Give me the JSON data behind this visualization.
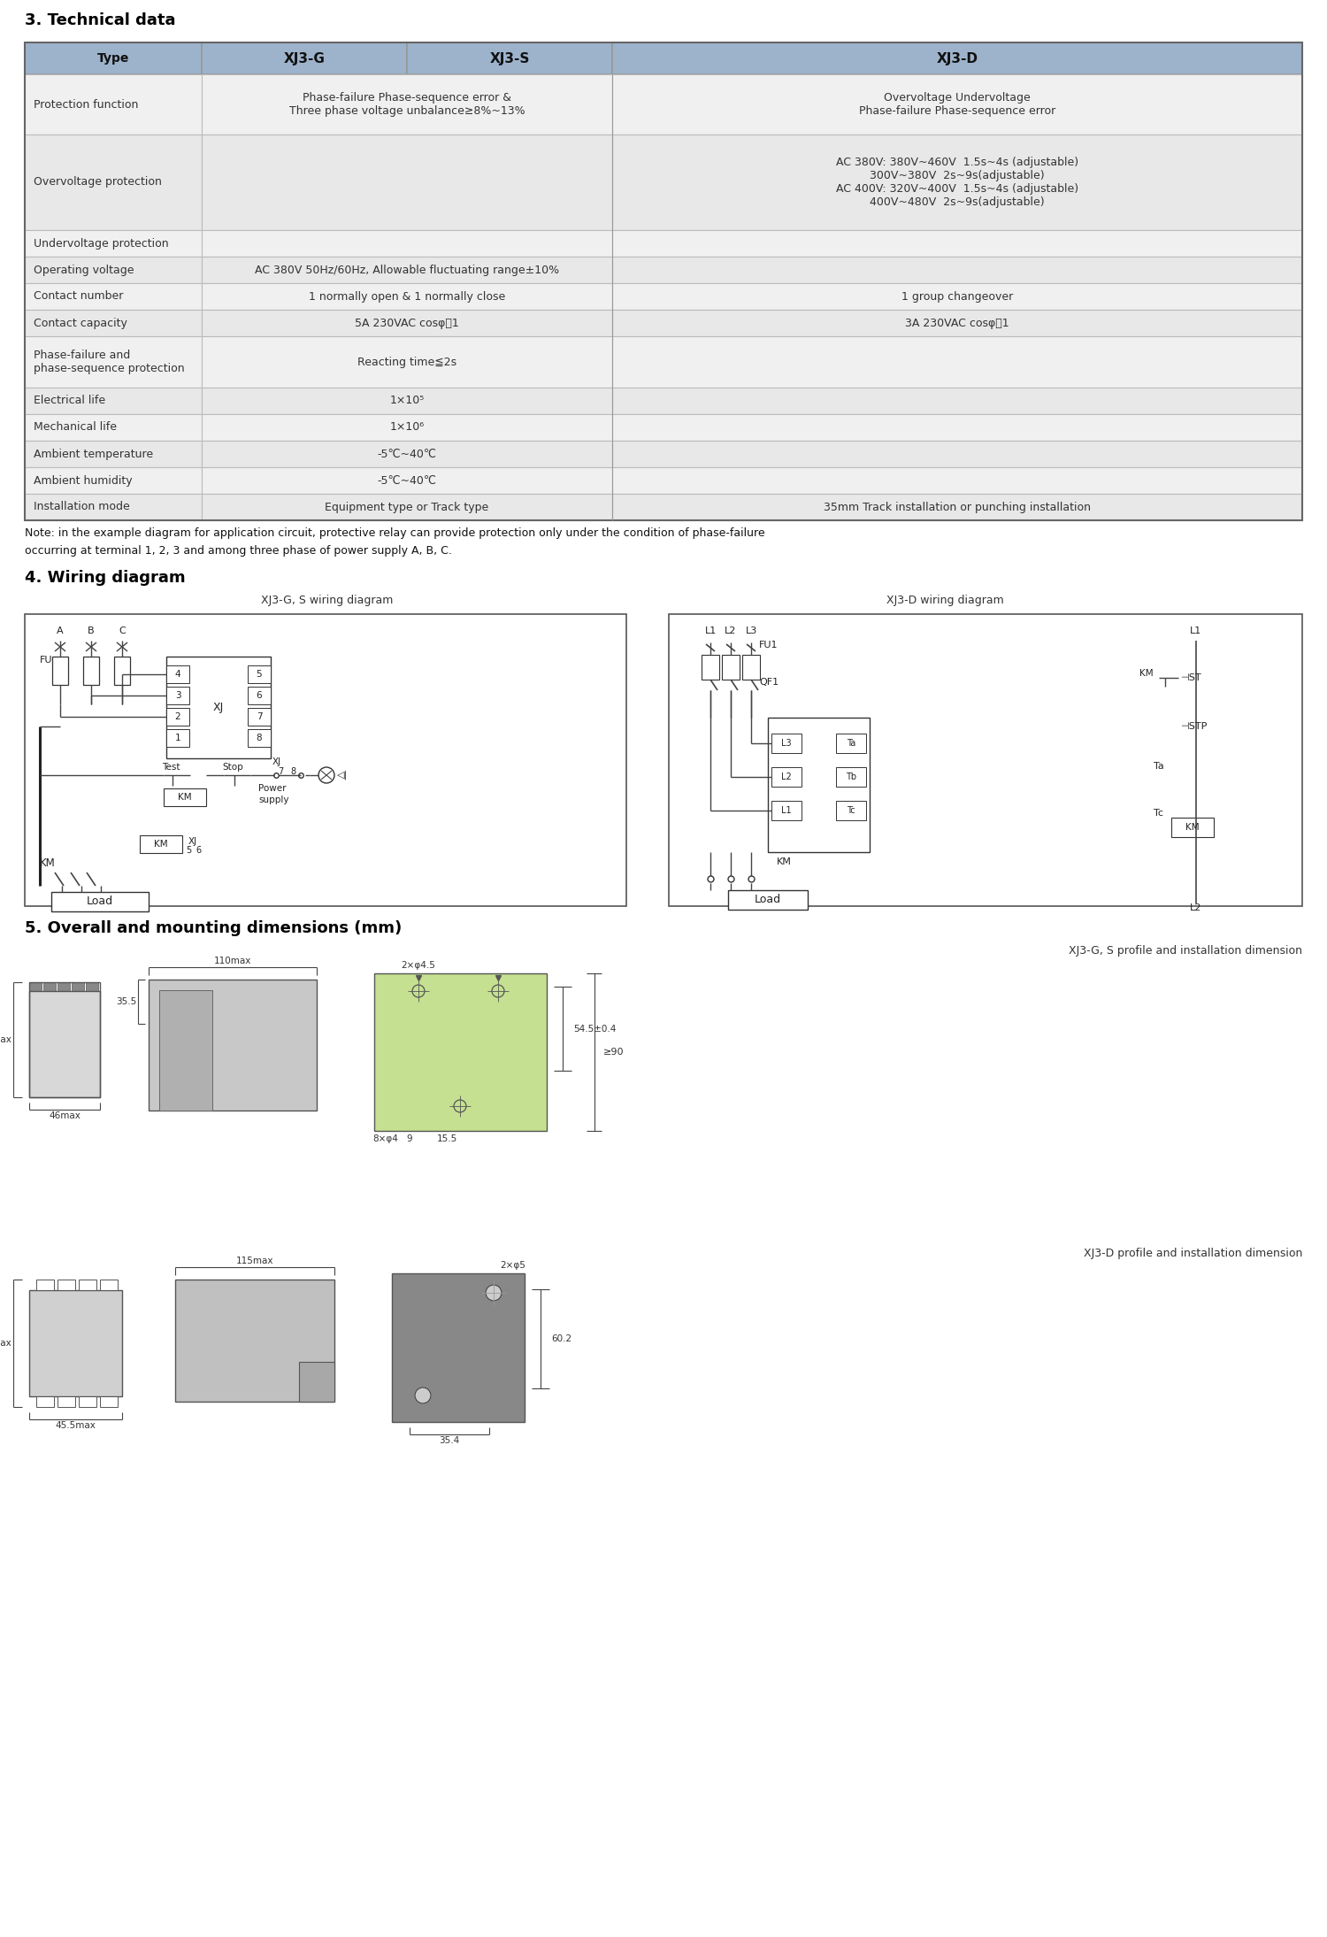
{
  "title3": "3. Technical data",
  "title4": "4. Wiring diagram",
  "title5": "5. Overall and mounting dimensions (mm)",
  "table_header_bg": "#9db3cc",
  "table_row_bg_dark": "#e8e8e8",
  "table_row_bg_light": "#f0f0f0",
  "note_text_line1": "Note: in the example diagram for application circuit, protective relay can provide protection only under the condition of phase-failure",
  "note_text_line2": "occurring at terminal 1, 2, 3 and among three phase of power supply A, B, C.",
  "wiring_label_left": "XJ3-G, S wiring diagram",
  "wiring_label_right": "XJ3-D wiring diagram",
  "dim_label_gs": "XJ3-G, S profile and installation dimension",
  "dim_label_d": "XJ3-D profile and installation dimension",
  "rows": [
    {
      "label": "Type",
      "xj3g": "XJ3-G",
      "xj3s": "XJ3-S",
      "xj3d": "XJ3-D",
      "is_header": true
    },
    {
      "label": "Protection function",
      "xj3gs": "Phase-failure Phase-sequence error &\nThree phase voltage unbalance≥8%~13%",
      "xj3d": "Overvoltage Undervoltage\nPhase-failure Phase-sequence error",
      "is_header": false,
      "light": true
    },
    {
      "label": "Overvoltage protection",
      "xj3gs": "",
      "xj3d": "AC 380V: 380V~460V  1.5s~4s (adjustable)\n300V~380V  2s~9s(adjustable)\nAC 400V: 320V~400V  1.5s~4s (adjustable)\n400V~480V  2s~9s(adjustable)",
      "is_header": false,
      "light": false
    },
    {
      "label": "Undervoltage protection",
      "xj3gs": "",
      "xj3d": "",
      "is_header": false,
      "light": true
    },
    {
      "label": "Operating voltage",
      "xj3gs": "AC 380V 50Hz/60Hz, Allowable fluctuating range±10%",
      "xj3d": "",
      "is_header": false,
      "light": false
    },
    {
      "label": "Contact number",
      "xj3gs": "1 normally open & 1 normally close",
      "xj3d": "1 group changeover",
      "is_header": false,
      "light": true
    },
    {
      "label": "Contact capacity",
      "xj3gs": "5A 230VAC cosφ＝1",
      "xj3d": "3A 230VAC cosφ＝1",
      "is_header": false,
      "light": false
    },
    {
      "label": "Phase-failure and\nphase-sequence protection",
      "xj3gs": "Reacting time≦2s",
      "xj3d": "",
      "is_header": false,
      "light": true
    },
    {
      "label": "Electrical life",
      "xj3gs": "1×10⁵",
      "xj3d": "",
      "is_header": false,
      "light": false
    },
    {
      "label": "Mechanical life",
      "xj3gs": "1×10⁶",
      "xj3d": "",
      "is_header": false,
      "light": true
    },
    {
      "label": "Ambient temperature",
      "xj3gs": "-5℃~40℃",
      "xj3d": "",
      "is_header": false,
      "light": false
    },
    {
      "label": "Ambient humidity",
      "xj3gs": "-5℃~40℃",
      "xj3d": "",
      "is_header": false,
      "light": true
    },
    {
      "label": "Installation mode",
      "xj3gs": "Equipment type or Track type",
      "xj3d": "35mm Track installation or punching installation",
      "is_header": false,
      "light": false
    }
  ]
}
